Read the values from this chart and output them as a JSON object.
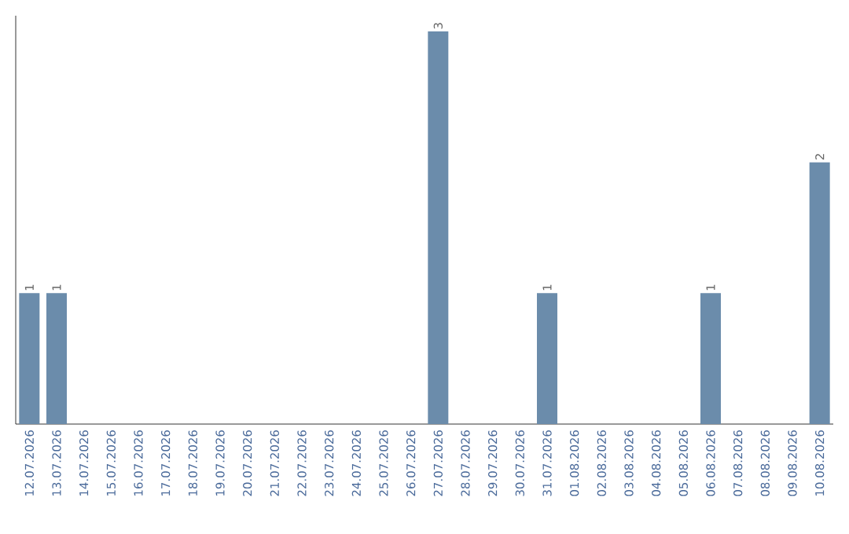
{
  "chart_data": {
    "type": "bar",
    "categories": [
      "12.07.2026",
      "13.07.2026",
      "14.07.2026",
      "15.07.2026",
      "16.07.2026",
      "17.07.2026",
      "18.07.2026",
      "19.07.2026",
      "20.07.2026",
      "21.07.2026",
      "22.07.2026",
      "23.07.2026",
      "24.07.2026",
      "25.07.2026",
      "26.07.2026",
      "27.07.2026",
      "28.07.2026",
      "29.07.2026",
      "30.07.2026",
      "31.07.2026",
      "01.08.2026",
      "02.08.2026",
      "03.08.2026",
      "04.08.2026",
      "05.08.2026",
      "06.08.2026",
      "07.08.2026",
      "08.08.2026",
      "09.08.2026",
      "10.08.2026"
    ],
    "values": [
      1,
      1,
      0,
      0,
      0,
      0,
      0,
      0,
      0,
      0,
      0,
      0,
      0,
      0,
      0,
      3,
      0,
      0,
      0,
      1,
      0,
      0,
      0,
      0,
      0,
      1,
      0,
      0,
      0,
      2
    ],
    "value_labels": [
      "1",
      "1",
      null,
      null,
      null,
      null,
      null,
      null,
      null,
      null,
      null,
      null,
      null,
      null,
      null,
      "3",
      null,
      null,
      null,
      "1",
      null,
      null,
      null,
      null,
      null,
      "1",
      null,
      null,
      null,
      "2"
    ],
    "color": "#6b8cab",
    "tick_labels": "x"
  }
}
